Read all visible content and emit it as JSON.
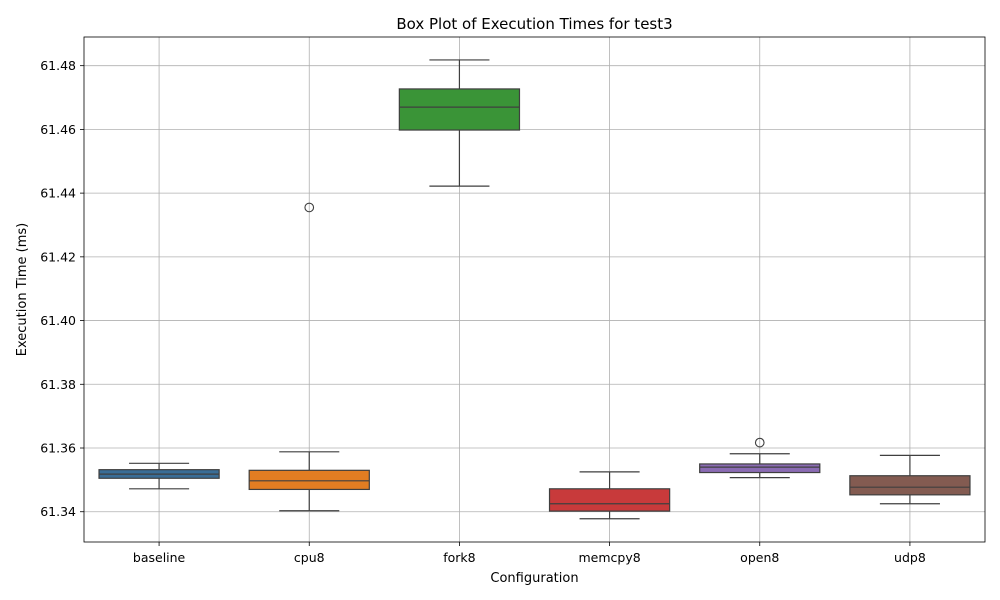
{
  "chart_data": {
    "type": "box",
    "title": "Box Plot of Execution Times for test3",
    "xlabel": "Configuration",
    "ylabel": "Execution Time (ms)",
    "ylim": [
      61.3305,
      61.489
    ],
    "yticks": [
      "61.34",
      "61.36",
      "61.38",
      "61.40",
      "61.42",
      "61.44",
      "61.46",
      "61.48"
    ],
    "grid": true,
    "categories": [
      "baseline",
      "cpu8",
      "fork8",
      "memcpy8",
      "open8",
      "udp8"
    ],
    "series": [
      {
        "category": "baseline",
        "color": "#3a6d96",
        "whisker_low": 61.3472,
        "q1": 61.3505,
        "median": 61.3518,
        "q3": 61.3532,
        "whisker_high": 61.3552,
        "outliers": []
      },
      {
        "category": "cpu8",
        "color": "#e27d22",
        "whisker_low": 61.3403,
        "q1": 61.347,
        "median": 61.3497,
        "q3": 61.353,
        "whisker_high": 61.3588,
        "outliers": [
          61.4355
        ]
      },
      {
        "category": "fork8",
        "color": "#3a9437",
        "whisker_low": 61.4422,
        "q1": 61.4598,
        "median": 61.467,
        "q3": 61.4727,
        "whisker_high": 61.4818,
        "outliers": []
      },
      {
        "category": "memcpy8",
        "color": "#c83a3b",
        "whisker_low": 61.3378,
        "q1": 61.3402,
        "median": 61.3425,
        "q3": 61.3472,
        "whisker_high": 61.3525,
        "outliers": []
      },
      {
        "category": "open8",
        "color": "#8a6bb3",
        "whisker_low": 61.3507,
        "q1": 61.3523,
        "median": 61.354,
        "q3": 61.355,
        "whisker_high": 61.3582,
        "outliers": [
          61.3617
        ]
      },
      {
        "category": "udp8",
        "color": "#835b51",
        "whisker_low": 61.3425,
        "q1": 61.3453,
        "median": 61.3477,
        "q3": 61.3513,
        "whisker_high": 61.3577,
        "outliers": []
      }
    ]
  }
}
